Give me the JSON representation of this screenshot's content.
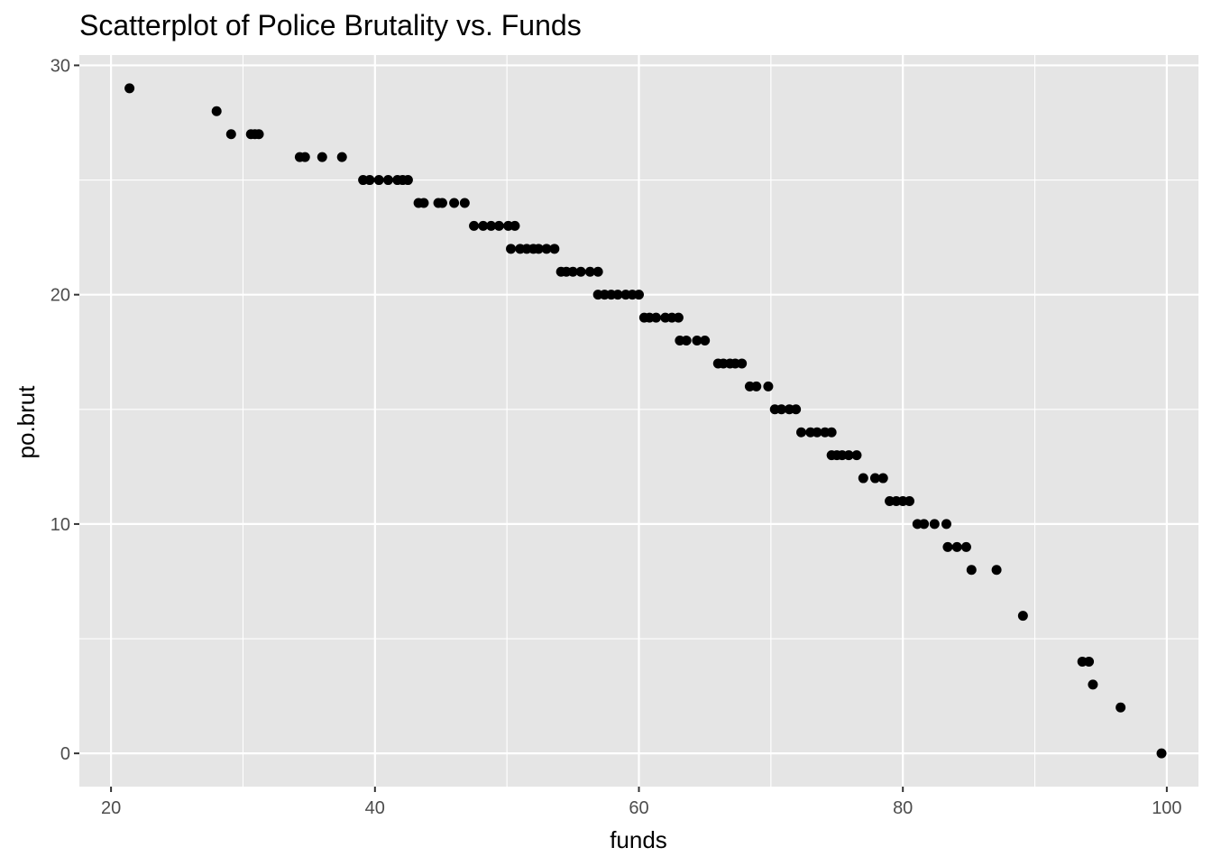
{
  "chart_data": {
    "type": "scatter",
    "title": "Scatterplot of Police Brutality vs. Funds",
    "xlabel": "funds",
    "ylabel": "po.brut",
    "xlim": [
      17.6,
      102.4
    ],
    "ylim": [
      -1.45,
      30.45
    ],
    "x_ticks": [
      20,
      40,
      60,
      80,
      100
    ],
    "y_ticks": [
      0,
      10,
      20,
      30
    ],
    "x_tick_labels": [
      "20",
      "40",
      "60",
      "80",
      "100"
    ],
    "y_tick_labels": [
      "0",
      "10",
      "20",
      "30"
    ],
    "grid": true,
    "legend": "none",
    "colors": {
      "panel": "#e5e5e5",
      "grid": "#ffffff",
      "point": "#000000",
      "tick": "#333333"
    },
    "points": [
      [
        21.4,
        29
      ],
      [
        28.0,
        28
      ],
      [
        29.1,
        27
      ],
      [
        30.6,
        27
      ],
      [
        30.9,
        27
      ],
      [
        31.2,
        27
      ],
      [
        34.3,
        26
      ],
      [
        34.7,
        26
      ],
      [
        36.0,
        26
      ],
      [
        37.5,
        26
      ],
      [
        39.1,
        25
      ],
      [
        39.6,
        25
      ],
      [
        40.3,
        25
      ],
      [
        41.0,
        25
      ],
      [
        41.7,
        25
      ],
      [
        42.1,
        25
      ],
      [
        42.5,
        25
      ],
      [
        43.3,
        24
      ],
      [
        43.7,
        24
      ],
      [
        44.8,
        24
      ],
      [
        45.1,
        24
      ],
      [
        46.0,
        24
      ],
      [
        46.8,
        24
      ],
      [
        47.5,
        23
      ],
      [
        48.2,
        23
      ],
      [
        48.8,
        23
      ],
      [
        49.4,
        23
      ],
      [
        50.1,
        23
      ],
      [
        50.6,
        23
      ],
      [
        50.3,
        22
      ],
      [
        51.0,
        22
      ],
      [
        51.5,
        22
      ],
      [
        52.0,
        22
      ],
      [
        52.4,
        22
      ],
      [
        53.0,
        22
      ],
      [
        53.6,
        22
      ],
      [
        54.1,
        21
      ],
      [
        54.5,
        21
      ],
      [
        55.0,
        21
      ],
      [
        55.6,
        21
      ],
      [
        56.3,
        21
      ],
      [
        56.9,
        21
      ],
      [
        56.9,
        20
      ],
      [
        57.4,
        20
      ],
      [
        57.9,
        20
      ],
      [
        58.4,
        20
      ],
      [
        59.0,
        20
      ],
      [
        59.5,
        20
      ],
      [
        60.0,
        20
      ],
      [
        60.4,
        19
      ],
      [
        60.8,
        19
      ],
      [
        61.3,
        19
      ],
      [
        62.0,
        19
      ],
      [
        62.5,
        19
      ],
      [
        63.0,
        19
      ],
      [
        63.1,
        18
      ],
      [
        63.6,
        18
      ],
      [
        64.4,
        18
      ],
      [
        65.0,
        18
      ],
      [
        66.0,
        17
      ],
      [
        66.4,
        17
      ],
      [
        66.9,
        17
      ],
      [
        67.3,
        17
      ],
      [
        67.8,
        17
      ],
      [
        68.4,
        16
      ],
      [
        68.9,
        16
      ],
      [
        69.8,
        16
      ],
      [
        70.3,
        15
      ],
      [
        70.8,
        15
      ],
      [
        71.4,
        15
      ],
      [
        71.9,
        15
      ],
      [
        72.3,
        14
      ],
      [
        73.0,
        14
      ],
      [
        73.5,
        14
      ],
      [
        74.1,
        14
      ],
      [
        74.6,
        14
      ],
      [
        74.6,
        13
      ],
      [
        75.0,
        13
      ],
      [
        75.4,
        13
      ],
      [
        75.9,
        13
      ],
      [
        76.5,
        13
      ],
      [
        77.0,
        12
      ],
      [
        77.9,
        12
      ],
      [
        78.5,
        12
      ],
      [
        79.0,
        11
      ],
      [
        79.5,
        11
      ],
      [
        80.0,
        11
      ],
      [
        80.5,
        11
      ],
      [
        81.1,
        10
      ],
      [
        81.6,
        10
      ],
      [
        82.4,
        10
      ],
      [
        83.3,
        10
      ],
      [
        83.4,
        9
      ],
      [
        84.1,
        9
      ],
      [
        84.8,
        9
      ],
      [
        85.2,
        8
      ],
      [
        87.1,
        8
      ],
      [
        89.1,
        6
      ],
      [
        93.6,
        4
      ],
      [
        94.1,
        4
      ],
      [
        94.4,
        3
      ],
      [
        96.5,
        2
      ],
      [
        99.6,
        0
      ]
    ]
  }
}
